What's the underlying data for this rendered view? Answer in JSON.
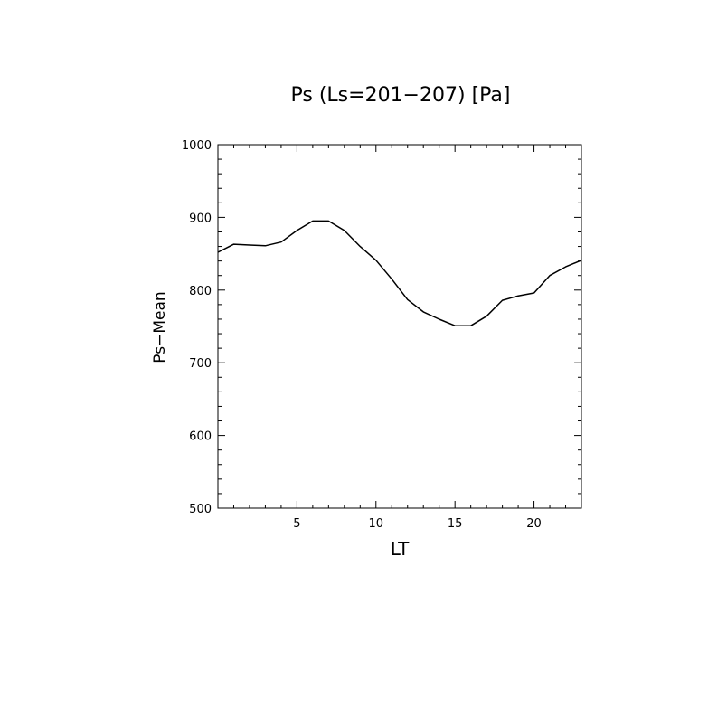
{
  "chart_data": {
    "type": "line",
    "title": "Ps (Ls=201−207) [Pa]",
    "xlabel": "LT",
    "ylabel": "Ps−Mean",
    "xlim": [
      0,
      23
    ],
    "ylim": [
      500,
      1000
    ],
    "xticks": [
      5,
      10,
      15,
      20
    ],
    "yticks": [
      500,
      600,
      700,
      800,
      900,
      1000
    ],
    "grid": false,
    "series": [
      {
        "x": [
          0,
          1,
          2,
          3,
          4,
          5,
          6,
          7,
          8,
          9,
          10,
          11,
          12,
          13,
          14,
          15,
          16,
          17,
          18,
          19,
          20,
          21,
          22,
          23
        ],
        "values": [
          852,
          863,
          862,
          861,
          866,
          882,
          895,
          895,
          882,
          860,
          841,
          815,
          787,
          770,
          760,
          751,
          751,
          764,
          786,
          792,
          796,
          820,
          832,
          841
        ]
      }
    ]
  }
}
